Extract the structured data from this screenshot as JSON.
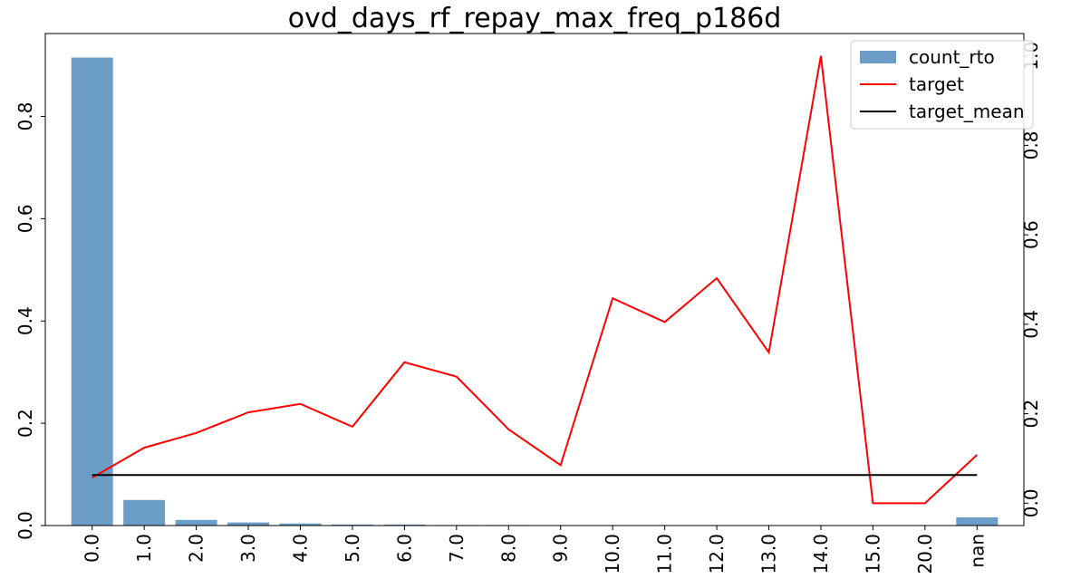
{
  "chart_data": {
    "type": "bar",
    "title": "ovd_days_rf_repay_max_freq_p186d",
    "categories": [
      "0.0",
      "1.0",
      "2.0",
      "3.0",
      "4.0",
      "5.0",
      "6.0",
      "7.0",
      "8.0",
      "9.0",
      "10.0",
      "11.0",
      "12.0",
      "13.0",
      "14.0",
      "15.0",
      "20.0",
      "nan"
    ],
    "series": [
      {
        "name": "count_rto",
        "kind": "bar",
        "axis": "left",
        "color": "#6b9dc7",
        "values": [
          0.915,
          0.05,
          0.011,
          0.006,
          0.004,
          0.002,
          0.002,
          0.001,
          0.001,
          0.0,
          0.0,
          0.0,
          0.0,
          0.0,
          0.0,
          0.0,
          0.0,
          0.016
        ]
      },
      {
        "name": "target",
        "kind": "line",
        "axis": "right",
        "color": "#ff0000",
        "values": [
          0.057,
          0.124,
          0.157,
          0.203,
          0.222,
          0.171,
          0.315,
          0.283,
          0.165,
          0.085,
          0.458,
          0.405,
          0.503,
          0.337,
          1.0,
          0.0,
          0.0,
          0.108
        ]
      },
      {
        "name": "target_mean",
        "kind": "line",
        "axis": "right",
        "color": "#000000",
        "values": [
          0.063,
          0.063,
          0.063,
          0.063,
          0.063,
          0.063,
          0.063,
          0.063,
          0.063,
          0.063,
          0.063,
          0.063,
          0.063,
          0.063,
          0.063,
          0.063,
          0.063,
          0.063
        ]
      }
    ],
    "y_left": {
      "ylim": [
        0,
        0.962
      ],
      "ticks": [
        0.0,
        0.2,
        0.4,
        0.6,
        0.8
      ],
      "tick_labels": [
        "0.0",
        "0.2",
        "0.4",
        "0.6",
        "0.8"
      ]
    },
    "y_right": {
      "ylim": [
        -0.05,
        1.05
      ],
      "ticks": [
        0.0,
        0.2,
        0.4,
        0.6,
        0.8,
        1.0
      ],
      "tick_labels": [
        "0.0",
        "0.2",
        "0.4",
        "0.6",
        "0.8",
        "1.0"
      ]
    },
    "xlabel": "",
    "ylabel": "",
    "grid": false,
    "legend_position": "top-right"
  }
}
